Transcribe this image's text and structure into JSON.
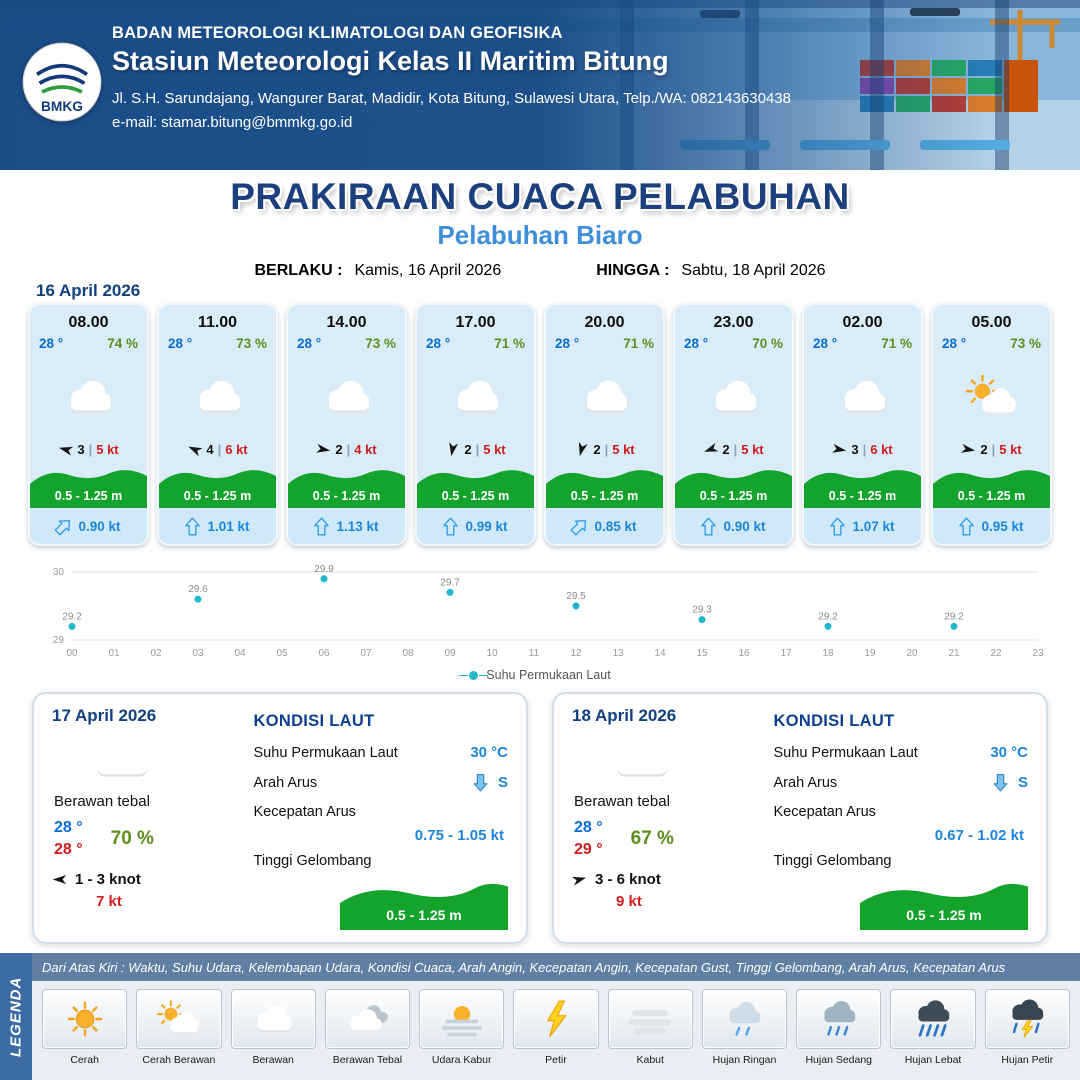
{
  "header": {
    "org": "BADAN METEOROLOGI KLIMATOLOGI DAN GEOFISIKA",
    "station": "Stasiun Meteorologi Kelas II Maritim Bitung",
    "address": "Jl. S.H. Sarundajang, Wangurer Barat, Madidir, Kota Bitung, Sulawesi Utara, Telp./WA: 082143630438",
    "email": "e-mail: stamar.bitung@bmmkg.go.id",
    "logo_text": "BMKG"
  },
  "title": {
    "main": "PRAKIRAAN CUACA PELABUHAN",
    "sub": "Pelabuhan Biaro",
    "valid_from_label": "BERLAKU :",
    "valid_from": "Kamis, 16 April 2026",
    "valid_to_label": "HINGGA :",
    "valid_to": "Sabtu, 18 April 2026"
  },
  "forecast_date": "16 April 2026",
  "labels": {
    "wind_sep": "|"
  },
  "hourly": [
    {
      "time": "08.00",
      "temp": "28 °",
      "humidity": "74 %",
      "icon": "cloudy",
      "wind_speed": "3",
      "gust": "5 kt",
      "wave": "0.5 - 1.25 m",
      "current": "0.90 kt",
      "wind_dir_deg": 195,
      "current_dir_deg": 45
    },
    {
      "time": "11.00",
      "temp": "28 °",
      "humidity": "73 %",
      "icon": "cloudy",
      "wind_speed": "4",
      "gust": "6 kt",
      "wave": "0.5 - 1.25 m",
      "current": "1.01 kt",
      "wind_dir_deg": 205,
      "current_dir_deg": 0
    },
    {
      "time": "14.00",
      "temp": "28 °",
      "humidity": "73 %",
      "icon": "cloudy",
      "wind_speed": "2",
      "gust": "4 kt",
      "wave": "0.5 - 1.25 m",
      "current": "1.13 kt",
      "wind_dir_deg": 10,
      "current_dir_deg": 0
    },
    {
      "time": "17.00",
      "temp": "28 °",
      "humidity": "71 %",
      "icon": "cloudy",
      "wind_speed": "2",
      "gust": "5 kt",
      "wave": "0.5 - 1.25 m",
      "current": "0.99 kt",
      "wind_dir_deg": 100,
      "current_dir_deg": 0
    },
    {
      "time": "20.00",
      "temp": "28 °",
      "humidity": "71 %",
      "icon": "cloudy",
      "wind_speed": "2",
      "gust": "5 kt",
      "wave": "0.5 - 1.25 m",
      "current": "0.85 kt",
      "wind_dir_deg": 105,
      "current_dir_deg": 45
    },
    {
      "time": "23.00",
      "temp": "28 °",
      "humidity": "70 %",
      "icon": "cloudy",
      "wind_speed": "2",
      "gust": "5 kt",
      "wave": "0.5 - 1.25 m",
      "current": "0.90 kt",
      "wind_dir_deg": 160,
      "current_dir_deg": 0
    },
    {
      "time": "02.00",
      "temp": "28 °",
      "humidity": "71 %",
      "icon": "cloudy",
      "wind_speed": "3",
      "gust": "6 kt",
      "wave": "0.5 - 1.25 m",
      "current": "1.07 kt",
      "wind_dir_deg": 10,
      "current_dir_deg": 0
    },
    {
      "time": "05.00",
      "temp": "28 °",
      "humidity": "73 %",
      "icon": "partly-cloudy",
      "wind_speed": "2",
      "gust": "5 kt",
      "wave": "0.5 - 1.25 m",
      "current": "0.95 kt",
      "wind_dir_deg": 10,
      "current_dir_deg": 0
    }
  ],
  "chart_data": {
    "type": "scatter",
    "x": [
      0,
      3,
      6,
      9,
      12,
      15,
      18,
      21
    ],
    "values": [
      29.2,
      29.6,
      29.9,
      29.7,
      29.5,
      29.3,
      29.2,
      29.2
    ],
    "x_ticks": [
      "00",
      "01",
      "02",
      "03",
      "04",
      "05",
      "06",
      "07",
      "08",
      "09",
      "10",
      "11",
      "12",
      "13",
      "14",
      "15",
      "16",
      "17",
      "18",
      "19",
      "20",
      "21",
      "22",
      "23"
    ],
    "y_ticks": [
      29,
      30
    ],
    "ylim": [
      29,
      30
    ],
    "legend": "Suhu Permukaan Laut",
    "point_color": "#1fb9c9",
    "grid": true,
    "legend_position": "bottom"
  },
  "daily_labels": {
    "sea_title": "KONDISI LAUT",
    "sst": "Suhu Permukaan Laut",
    "current_dir": "Arah Arus",
    "current_speed": "Kecepatan Arus",
    "wave": "Tinggi Gelombang"
  },
  "daily": [
    {
      "date": "17 April 2026",
      "icon": "cloudy",
      "condition": "Berawan tebal",
      "temp_day": "28 °",
      "temp_night": "28 °",
      "humidity": "70 %",
      "wind_range": "1  - 3 knot",
      "gust": "7 kt",
      "wind_dir_deg": 180,
      "sst": "30 °C",
      "current_dir": "S",
      "current_speed": "0.75 - 1.05 kt",
      "wave": "0.5 - 1.25 m"
    },
    {
      "date": "18 April 2026",
      "icon": "cloudy",
      "condition": "Berawan tebal",
      "temp_day": "28 °",
      "temp_night": "29 °",
      "humidity": "67 %",
      "wind_range": "3  - 6 knot",
      "gust": "9 kt",
      "wind_dir_deg": -15,
      "sst": "30 °C",
      "current_dir": "S",
      "current_speed": "0.67 - 1.02 kt",
      "wave": "0.5 - 1.25 m"
    }
  ],
  "legend_section": {
    "sidebar": "LEGENDA",
    "note": "Dari Atas Kiri : Waktu, Suhu Udara, Kelembapan Udara, Kondisi Cuaca, Arah Angin, Kecepatan Angin, Kecepatan Gust, Tinggi Gelombang, Arah Arus, Kecepatan Arus",
    "items": [
      {
        "label": "Cerah",
        "icon": "sun"
      },
      {
        "label": "Cerah Berawan",
        "icon": "partly-cloudy"
      },
      {
        "label": "Berawan",
        "icon": "cloudy"
      },
      {
        "label": "Berawan Tebal",
        "icon": "overcast"
      },
      {
        "label": "Udara Kabur",
        "icon": "haze"
      },
      {
        "label": "Petir",
        "icon": "thunder"
      },
      {
        "label": "Kabut",
        "icon": "fog"
      },
      {
        "label": "Hujan Ringan",
        "icon": "rain-light"
      },
      {
        "label": "Hujan Sedang",
        "icon": "rain-medium"
      },
      {
        "label": "Hujan Lebat",
        "icon": "rain-heavy"
      },
      {
        "label": "Hujan Petir",
        "icon": "rain-thunder"
      }
    ]
  }
}
